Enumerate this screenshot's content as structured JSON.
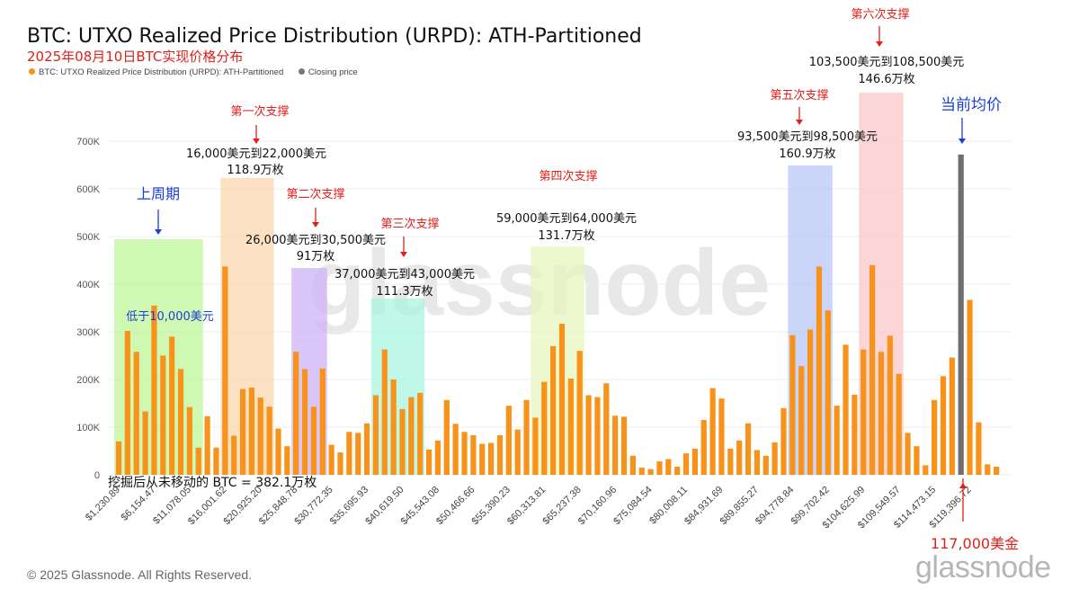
{
  "header": {
    "title": "BTC: UTXO Realized Price Distribution (URPD): ATH-Partitioned",
    "subtitle": "2025年08月10日BTC实现价格分布"
  },
  "legend": [
    {
      "label": "BTC: UTXO Realized Price Distribution (URPD): ATH-Partitioned",
      "color": "#f7931a"
    },
    {
      "label": "Closing price",
      "color": "#777777"
    }
  ],
  "footer": {
    "copyright": "© 2025 Glassnode. All Rights Reserved.",
    "brand": "glassnode"
  },
  "watermark": "glassnode",
  "colors": {
    "bar": "#f7931a",
    "current_bar": "#6e6e6e",
    "annotation_red": "#e0201b",
    "annotation_blue": "#1a3fd4"
  },
  "chart_data": {
    "type": "bar",
    "ylim": [
      0,
      700000
    ],
    "yticks": [
      0,
      100000,
      200000,
      300000,
      400000,
      500000,
      600000,
      700000
    ],
    "ytick_labels": [
      "0",
      "100K",
      "200K",
      "300K",
      "400K",
      "500K",
      "600K",
      "700K"
    ],
    "xtick_labels": [
      "$1,230.89",
      "$6,154.47",
      "$11,078.05",
      "$16,001.62",
      "$20,925.20",
      "$25,848.78",
      "$30,772.35",
      "$35,695.93",
      "$40,619.50",
      "$45,543.08",
      "$50,466.66",
      "$55,390.23",
      "$60,313.81",
      "$65,237.38",
      "$70,160.96",
      "$75,084.54",
      "$80,008.11",
      "$84,931.69",
      "$89,855.27",
      "$94,778.84",
      "$99,702.42",
      "$104,625.99",
      "$109,549.57",
      "$114,473.15",
      "$119,396.72"
    ],
    "series": [
      {
        "name": "BTC: UTXO Realized Price Distribution (URPD): ATH-Partitioned",
        "values": [
          70000,
          302000,
          258000,
          133000,
          355000,
          250000,
          290000,
          222000,
          142000,
          57000,
          123000,
          57000,
          437000,
          82000,
          180000,
          183000,
          162000,
          143000,
          97000,
          60000,
          258000,
          222000,
          143000,
          223000,
          63000,
          47000,
          90000,
          88000,
          108000,
          167000,
          263000,
          200000,
          138000,
          163000,
          172000,
          53000,
          72000,
          157000,
          107000,
          90000,
          83000,
          65000,
          67000,
          83000,
          145000,
          95000,
          157000,
          120000,
          195000,
          270000,
          317000,
          202000,
          260000,
          167000,
          163000,
          192000,
          124000,
          122000,
          40000,
          15000,
          12000,
          28000,
          33000,
          17000,
          45000,
          55000,
          115000,
          182000,
          160000,
          55000,
          72000,
          108000,
          52000,
          40000,
          68000,
          140000,
          293000,
          228000,
          305000,
          437000,
          345000,
          145000,
          273000,
          168000,
          263000,
          440000,
          258000,
          292000,
          212000,
          88000,
          60000,
          20000,
          157000,
          207000,
          246000,
          672000,
          367000,
          110000,
          22000,
          17000
        ]
      },
      {
        "name": "Closing price",
        "bar_index": 95,
        "value": 672000
      }
    ]
  },
  "annotations": {
    "last_cycle_title": "上周期",
    "last_cycle_label": "低于10,000美元",
    "s1_title": "第一次支撑",
    "s1_range": "16,000美元到22,000美元",
    "s1_amount": "118.9万枚",
    "s2_title": "第二次支撑",
    "s2_range": "26,000美元到30,500美元",
    "s2_amount": "91万枚",
    "s3_title": "第三次支撑",
    "s3_range": "37,000美元到43,000美元",
    "s3_amount": "111.3万枚",
    "s4_title": "第四次支撑",
    "s4_range": "59,000美元到64,000美元",
    "s4_amount": "131.7万枚",
    "s5_title": "第五次支撑",
    "s5_range": "93,500美元到98,500美元",
    "s5_amount": "160.9万枚",
    "s6_title": "第六次支撑",
    "s6_range": "103,500美元到108,500美元",
    "s6_amount": "146.6万枚",
    "avg_title": "当前均价",
    "current_price": "117,000美金",
    "unmoved": "挖掘后从未移动的 BTC = 382.1万枚"
  }
}
